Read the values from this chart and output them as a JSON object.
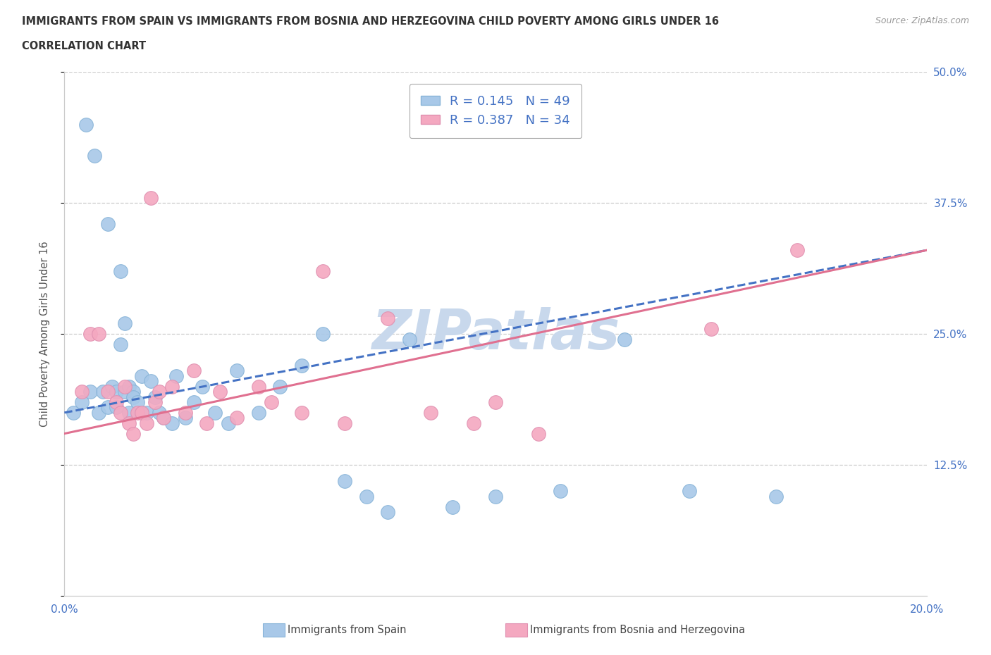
{
  "title_line1": "IMMIGRANTS FROM SPAIN VS IMMIGRANTS FROM BOSNIA AND HERZEGOVINA CHILD POVERTY AMONG GIRLS UNDER 16",
  "title_line2": "CORRELATION CHART",
  "source_text": "Source: ZipAtlas.com",
  "ylabel": "Child Poverty Among Girls Under 16",
  "xlim": [
    0.0,
    0.2
  ],
  "ylim": [
    0.0,
    0.5
  ],
  "xticks": [
    0.0,
    0.05,
    0.1,
    0.15,
    0.2
  ],
  "yticks": [
    0.0,
    0.125,
    0.25,
    0.375,
    0.5
  ],
  "r_spain": 0.145,
  "n_spain": 49,
  "r_bosnia": 0.387,
  "n_bosnia": 34,
  "color_spain": "#a8c8e8",
  "color_bosnia": "#f4a8c0",
  "line_color_spain": "#4472c4",
  "line_color_bosnia": "#e07090",
  "tick_label_color": "#4472c4",
  "watermark": "ZIPatlas",
  "watermark_color": "#c8d8ec",
  "spain_x": [
    0.002,
    0.004,
    0.005,
    0.006,
    0.007,
    0.008,
    0.009,
    0.01,
    0.01,
    0.011,
    0.012,
    0.012,
    0.013,
    0.013,
    0.014,
    0.014,
    0.015,
    0.015,
    0.016,
    0.016,
    0.017,
    0.018,
    0.019,
    0.02,
    0.021,
    0.022,
    0.023,
    0.025,
    0.026,
    0.028,
    0.03,
    0.032,
    0.035,
    0.038,
    0.04,
    0.045,
    0.05,
    0.055,
    0.06,
    0.065,
    0.07,
    0.075,
    0.08,
    0.09,
    0.1,
    0.115,
    0.13,
    0.145,
    0.165
  ],
  "spain_y": [
    0.175,
    0.185,
    0.45,
    0.195,
    0.42,
    0.175,
    0.195,
    0.18,
    0.355,
    0.2,
    0.195,
    0.18,
    0.31,
    0.24,
    0.26,
    0.195,
    0.2,
    0.175,
    0.195,
    0.19,
    0.185,
    0.21,
    0.175,
    0.205,
    0.19,
    0.175,
    0.17,
    0.165,
    0.21,
    0.17,
    0.185,
    0.2,
    0.175,
    0.165,
    0.215,
    0.175,
    0.2,
    0.22,
    0.25,
    0.11,
    0.095,
    0.08,
    0.245,
    0.085,
    0.095,
    0.1,
    0.245,
    0.1,
    0.095
  ],
  "bosnia_x": [
    0.004,
    0.006,
    0.008,
    0.01,
    0.012,
    0.013,
    0.014,
    0.015,
    0.016,
    0.017,
    0.018,
    0.019,
    0.02,
    0.021,
    0.022,
    0.023,
    0.025,
    0.028,
    0.03,
    0.033,
    0.036,
    0.04,
    0.045,
    0.048,
    0.055,
    0.06,
    0.065,
    0.075,
    0.085,
    0.095,
    0.1,
    0.11,
    0.15,
    0.17
  ],
  "bosnia_y": [
    0.195,
    0.25,
    0.25,
    0.195,
    0.185,
    0.175,
    0.2,
    0.165,
    0.155,
    0.175,
    0.175,
    0.165,
    0.38,
    0.185,
    0.195,
    0.17,
    0.2,
    0.175,
    0.215,
    0.165,
    0.195,
    0.17,
    0.2,
    0.185,
    0.175,
    0.31,
    0.165,
    0.265,
    0.175,
    0.165,
    0.185,
    0.155,
    0.255,
    0.33
  ],
  "spain_trend_x": [
    0.0,
    0.2
  ],
  "spain_trend_y": [
    0.175,
    0.33
  ],
  "bosnia_trend_x": [
    0.0,
    0.2
  ],
  "bosnia_trend_y": [
    0.155,
    0.33
  ]
}
